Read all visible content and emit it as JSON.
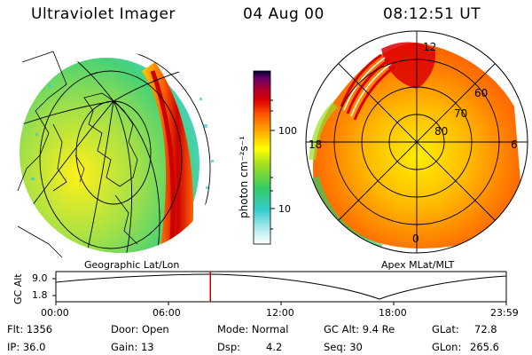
{
  "header": {
    "instrument": "Ultraviolet Imager",
    "date": "04 Aug 00",
    "time": "08:12:51 UT"
  },
  "left_panel": {
    "caption": "Geographic Lat/Lon"
  },
  "right_panel": {
    "caption": "Apex MLat/MLT",
    "mlt_labels": [
      "12",
      "18",
      "6",
      "0"
    ],
    "mlat_labels": [
      "60",
      "70",
      "80"
    ]
  },
  "colorbar": {
    "unit_label": "photon cm⁻²s⁻¹",
    "ticks": [
      "100",
      "10"
    ],
    "scale": "log"
  },
  "altitude_plot": {
    "y_label": "GC Alt",
    "y_ticks": [
      "9.0",
      "1.8"
    ],
    "x_ticks": [
      "00:00",
      "06:00",
      "12:00",
      "18:00",
      "23:59"
    ],
    "current_time_fraction": 0.343,
    "marker_color": "#cc0000"
  },
  "info": {
    "flt": "Flt: 1356",
    "door": "Door: Open",
    "mode": "Mode: Normal",
    "gc_alt": "GC Alt: 9.4 Re",
    "glat_label": "GLat:",
    "glat_value": "72.8",
    "ip": "IP: 36.0",
    "gain": "Gain: 13",
    "dsp_label": "Dsp:",
    "dsp_value": "4.2",
    "seq": "Seq: 30",
    "glon_label": "GLon:",
    "glon_value": "265.6"
  }
}
